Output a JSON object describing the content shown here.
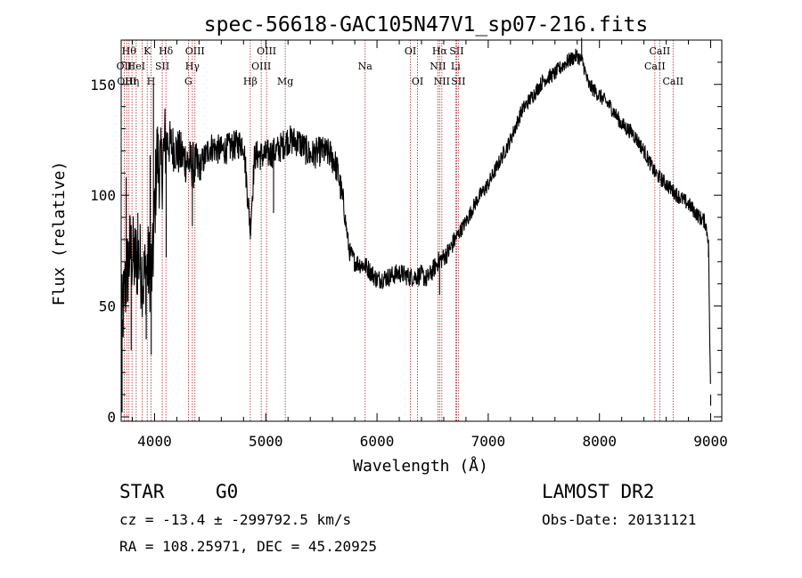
{
  "chart_data": {
    "type": "line",
    "title": "spec-56618-GAC105N47V1_sp07-216.fits",
    "xlabel": "Wavelength (Å)",
    "ylabel": "Flux (relative)",
    "xlim": [
      3700,
      9100
    ],
    "ylim": [
      -2,
      170
    ],
    "x_ticks": [
      4000,
      5000,
      6000,
      7000,
      8000,
      9000
    ],
    "y_ticks": [
      0,
      50,
      100,
      150
    ],
    "grid": false,
    "line_color": "#000000",
    "marker_color": "#b22222",
    "spectrum": {
      "x": [
        3700,
        3740,
        3780,
        3820,
        3860,
        3900,
        3940,
        3980,
        4020,
        4060,
        4100,
        4200,
        4300,
        4400,
        4500,
        4600,
        4700,
        4800,
        4860,
        4900,
        5000,
        5100,
        5200,
        5300,
        5400,
        5500,
        5600,
        5650,
        5700,
        5750,
        5800,
        5900,
        6000,
        6100,
        6200,
        6300,
        6400,
        6450,
        6500,
        6550,
        6600,
        6650,
        6700,
        6800,
        6900,
        7000,
        7100,
        7200,
        7300,
        7400,
        7500,
        7600,
        7700,
        7800,
        7850,
        7900,
        8000,
        8100,
        8200,
        8300,
        8400,
        8500,
        8600,
        8700,
        8800,
        8900,
        8950,
        8980,
        9000
      ],
      "y": [
        40,
        60,
        75,
        70,
        72,
        62,
        68,
        65,
        118,
        110,
        125,
        120,
        115,
        112,
        122,
        120,
        122,
        124,
        85,
        118,
        118,
        120,
        125,
        124,
        118,
        120,
        118,
        110,
        95,
        75,
        70,
        68,
        62,
        63,
        65,
        63,
        64,
        62,
        66,
        70,
        72,
        75,
        80,
        88,
        98,
        105,
        115,
        125,
        138,
        145,
        152,
        155,
        160,
        163,
        160,
        150,
        145,
        140,
        132,
        128,
        120,
        110,
        105,
        100,
        96,
        90,
        88,
        80,
        5
      ]
    },
    "spikes": [
      {
        "x": 3708,
        "y": 2
      },
      {
        "x": 3745,
        "y": 108
      },
      {
        "x": 3790,
        "y": 30
      },
      {
        "x": 3850,
        "y": 92
      },
      {
        "x": 3925,
        "y": 35
      },
      {
        "x": 3960,
        "y": 118
      },
      {
        "x": 3970,
        "y": 28
      },
      {
        "x": 3990,
        "y": 150
      },
      {
        "x": 4105,
        "y": 72
      },
      {
        "x": 4340,
        "y": 86
      },
      {
        "x": 4861,
        "y": 80
      },
      {
        "x": 5070,
        "y": 92
      },
      {
        "x": 5600,
        "y": 110
      },
      {
        "x": 6563,
        "y": 55
      },
      {
        "x": 7840,
        "y": 171
      },
      {
        "x": 8980,
        "y": 72
      },
      {
        "x": 9000,
        "y": 10
      }
    ],
    "lines": [
      {
        "x": 3727,
        "label": "OII",
        "row": 1
      },
      {
        "x": 3750,
        "label": "OIII",
        "row": 2
      },
      {
        "x": 3770,
        "label": "Hθ",
        "row": 0
      },
      {
        "x": 3797,
        "label": "Hη",
        "row": 2
      },
      {
        "x": 3835,
        "label": "HeI",
        "row": 1
      },
      {
        "x": 3889,
        "label": "",
        "row": -1
      },
      {
        "x": 3934,
        "label": "K",
        "row": 0
      },
      {
        "x": 3969,
        "label": "H",
        "row": 2
      },
      {
        "x": 4069,
        "label": "SII",
        "row": 1
      },
      {
        "x": 4102,
        "label": "Hδ",
        "row": 0
      },
      {
        "x": 4304,
        "label": "G",
        "row": 2
      },
      {
        "x": 4340,
        "label": "Hγ",
        "row": 1
      },
      {
        "x": 4363,
        "label": "OIII",
        "row": 0
      },
      {
        "x": 4861,
        "label": "Hβ",
        "row": 2
      },
      {
        "x": 4959,
        "label": "OIII",
        "row": 1
      },
      {
        "x": 5007,
        "label": "OIII",
        "row": 0
      },
      {
        "x": 5175,
        "label": "Mg",
        "row": 2
      },
      {
        "x": 5893,
        "label": "Na",
        "row": 1
      },
      {
        "x": 6300,
        "label": "OI",
        "row": 0
      },
      {
        "x": 6364,
        "label": "OI",
        "row": 2
      },
      {
        "x": 6548,
        "label": "NII",
        "row": 1
      },
      {
        "x": 6563,
        "label": "Hα",
        "row": 0
      },
      {
        "x": 6583,
        "label": "NII",
        "row": 2
      },
      {
        "x": 6707,
        "label": "Li",
        "row": 1
      },
      {
        "x": 6716,
        "label": "SII",
        "row": 0
      },
      {
        "x": 6731,
        "label": "SII",
        "row": 2
      },
      {
        "x": 8498,
        "label": "CaII",
        "row": 1
      },
      {
        "x": 8542,
        "label": "CaII",
        "row": 0
      },
      {
        "x": 8662,
        "label": "CaII",
        "row": 2
      }
    ]
  },
  "info": {
    "class_label": "STAR",
    "subclass_label": "G0",
    "survey_label": "LAMOST DR2",
    "cz_line": "cz = -13.4 ± -299792.5 km/s",
    "obsdate_line": "Obs-Date: 20131121",
    "coords_line": "RA = 108.25971, DEC =  45.20925"
  }
}
